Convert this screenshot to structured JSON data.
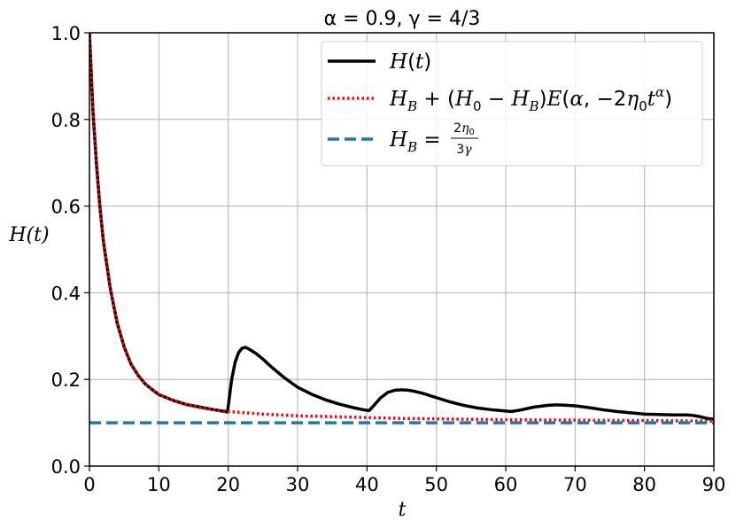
{
  "chart_data": {
    "type": "line",
    "title": "α = 0.9, γ = 4/3",
    "xlabel": "t",
    "ylabel": "H(t)",
    "xlim": [
      0,
      90
    ],
    "ylim": [
      0.0,
      1.0
    ],
    "xticks": [
      0,
      10,
      20,
      30,
      40,
      50,
      60,
      70,
      80,
      90
    ],
    "yticks": [
      0.0,
      0.2,
      0.4,
      0.6,
      0.8,
      1.0
    ],
    "xtick_labels": [
      "0",
      "10",
      "20",
      "30",
      "40",
      "50",
      "60",
      "70",
      "80",
      "90"
    ],
    "ytick_labels": [
      "0.0",
      "0.2",
      "0.4",
      "0.6",
      "0.8",
      "1.0"
    ],
    "grid": true,
    "legend_placement": "top-right",
    "series": [
      {
        "name": "H(t)",
        "style": "solid",
        "color": "#000000",
        "x": [
          0,
          0.5,
          1,
          1.5,
          2,
          3,
          4,
          5,
          6,
          7,
          8,
          9,
          10,
          12,
          14,
          16,
          18,
          19.9,
          20.1,
          20.5,
          21,
          21.5,
          22,
          22.5,
          23,
          24,
          25,
          26,
          28,
          30,
          32,
          34,
          36,
          38,
          39.5,
          40.3,
          41,
          42,
          43,
          44,
          45,
          46,
          47,
          48,
          50,
          52,
          54,
          56,
          58,
          60,
          60.8,
          62,
          64,
          66,
          67,
          68,
          70,
          72,
          74,
          76,
          78,
          80,
          82,
          84,
          86,
          87,
          88,
          89,
          90
        ],
        "y": [
          1.0,
          0.82,
          0.7,
          0.6,
          0.52,
          0.41,
          0.33,
          0.275,
          0.235,
          0.21,
          0.19,
          0.177,
          0.165,
          0.152,
          0.142,
          0.136,
          0.13,
          0.125,
          0.15,
          0.2,
          0.24,
          0.262,
          0.272,
          0.274,
          0.27,
          0.26,
          0.247,
          0.232,
          0.205,
          0.182,
          0.166,
          0.153,
          0.143,
          0.135,
          0.13,
          0.128,
          0.14,
          0.158,
          0.17,
          0.175,
          0.176,
          0.175,
          0.172,
          0.168,
          0.158,
          0.148,
          0.14,
          0.134,
          0.13,
          0.127,
          0.126,
          0.129,
          0.136,
          0.14,
          0.141,
          0.141,
          0.139,
          0.135,
          0.13,
          0.126,
          0.123,
          0.12,
          0.119,
          0.118,
          0.118,
          0.117,
          0.114,
          0.11,
          0.108
        ]
      },
      {
        "name": "H_B + (H_0 − H_B)E(α, −2η_0 t^α)",
        "style": "dotted",
        "color": "#ff0000",
        "x": [
          0,
          0.5,
          1,
          1.5,
          2,
          3,
          4,
          5,
          6,
          7,
          8,
          9,
          10,
          12,
          14,
          16,
          18,
          20,
          25,
          30,
          35,
          40,
          45,
          50,
          60,
          70,
          80,
          90
        ],
        "y": [
          1.0,
          0.82,
          0.7,
          0.6,
          0.52,
          0.41,
          0.33,
          0.275,
          0.235,
          0.21,
          0.19,
          0.177,
          0.165,
          0.152,
          0.142,
          0.135,
          0.13,
          0.126,
          0.12,
          0.116,
          0.114,
          0.112,
          0.11,
          0.109,
          0.107,
          0.106,
          0.105,
          0.104
        ]
      },
      {
        "name": "H_B = 2η_0 / 3γ",
        "style": "dashed",
        "color": "#1f77b4",
        "x": [
          0,
          90
        ],
        "y": [
          0.1,
          0.1
        ]
      }
    ]
  }
}
